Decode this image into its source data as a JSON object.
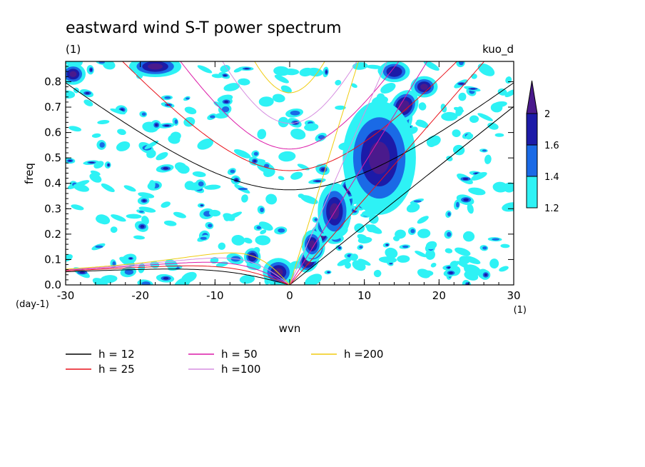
{
  "chart_data": {
    "type": "heatmap",
    "title": "eastward wind S-T power spectrum",
    "subtitle_left": "(1)",
    "subtitle_right": "kuo_d",
    "xlabel": "wvn",
    "ylabel": "freq",
    "x_unit": "(1)",
    "y_unit": "(day-1)",
    "xlim": [
      -30,
      30
    ],
    "ylim": [
      0,
      0.88
    ],
    "x_ticks": [
      -30,
      -20,
      -10,
      0,
      10,
      20,
      30
    ],
    "y_ticks": [
      0.0,
      0.1,
      0.2,
      0.3,
      0.4,
      0.5,
      0.6,
      0.7,
      0.8
    ],
    "colorbar": {
      "levels": [
        "1.2",
        "1.4",
        "1.6",
        "2"
      ],
      "colors": [
        "#2ef2f5",
        "#1a6ae6",
        "#1c1ba8",
        "#4a1a8c"
      ]
    },
    "legend": [
      {
        "name": "h = 12",
        "h": 12,
        "color": "#000000"
      },
      {
        "name": "h = 25",
        "h": 25,
        "color": "#e8121a"
      },
      {
        "name": "h = 50",
        "h": 50,
        "color": "#dc1aa8"
      },
      {
        "name": "h =100",
        "h": 100,
        "color": "#d68ee0"
      },
      {
        "name": "h =200",
        "h": 200,
        "color": "#f0cc10"
      }
    ],
    "blobs": [
      {
        "x": 12,
        "y": 0.5,
        "a": 3.5,
        "b": 0.16,
        "level": 2,
        "ang": 0
      },
      {
        "x": 6,
        "y": 0.29,
        "a": 1.6,
        "b": 0.08,
        "level": 2,
        "ang": 0
      },
      {
        "x": 3,
        "y": 0.16,
        "a": 1.0,
        "b": 0.04,
        "level": 2,
        "ang": 0
      },
      {
        "x": -1.5,
        "y": 0.05,
        "a": 1.5,
        "b": 0.04,
        "level": 2,
        "ang": 0
      },
      {
        "x": -5,
        "y": 0.11,
        "a": 0.8,
        "b": 0.025,
        "level": 1,
        "ang": 0
      },
      {
        "x": -18,
        "y": 0.86,
        "a": 2.5,
        "b": 0.03,
        "level": 2,
        "ang": 0
      },
      {
        "x": -29,
        "y": 0.83,
        "a": 1.2,
        "b": 0.03,
        "level": 2,
        "ang": 0
      },
      {
        "x": 18,
        "y": 0.78,
        "a": 1.3,
        "b": 0.03,
        "level": 2,
        "ang": 0
      },
      {
        "x": 14,
        "y": 0.84,
        "a": 1.5,
        "b": 0.03,
        "level": 1,
        "ang": 0
      }
    ]
  }
}
